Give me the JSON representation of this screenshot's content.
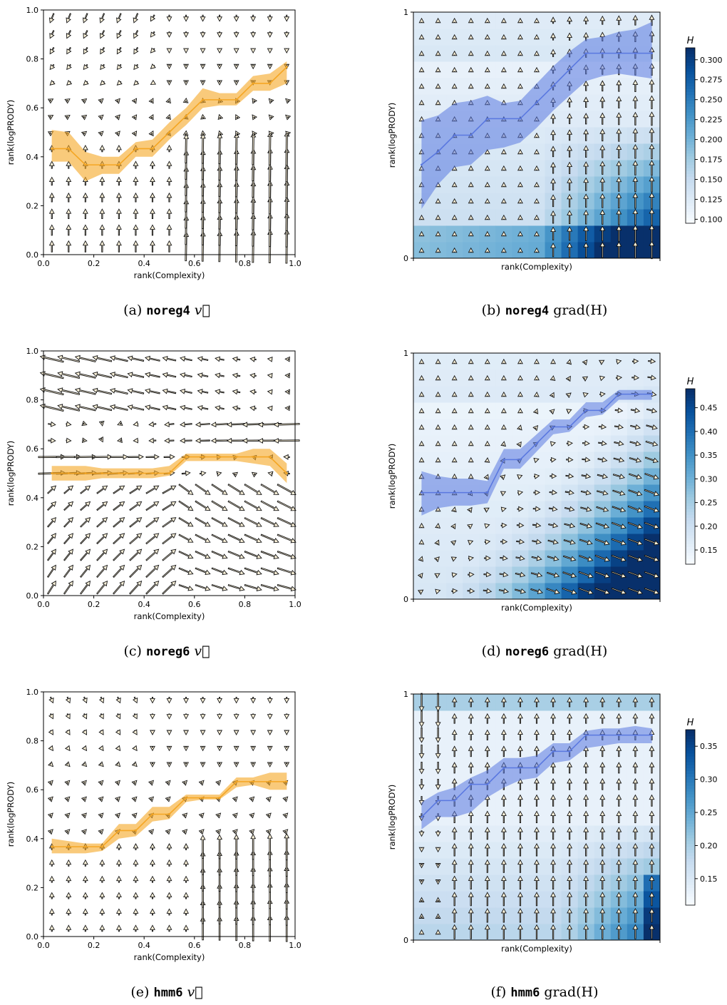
{
  "figure": {
    "panels": [
      {
        "id": "a",
        "kind": "vector",
        "caption": {
          "prefix": "(a)",
          "model": "noreg4",
          "suffix": "v⃗"
        },
        "xlabel": "rank(Complexity)",
        "ylabel": "rank(logPRODY)",
        "xticks": [
          "0.0",
          "0.2",
          "0.4",
          "0.6",
          "0.8",
          "1.0"
        ],
        "yticks": [
          "0.0",
          "0.2",
          "0.4",
          "0.6",
          "0.8",
          "1.0"
        ],
        "chart_data": {
          "type": "line",
          "xlim": [
            0,
            1
          ],
          "ylim": [
            0,
            1
          ],
          "series": [
            {
              "color": "#f5a623",
              "x": [
                0.033,
                0.1,
                0.167,
                0.233,
                0.3,
                0.367,
                0.433,
                0.5,
                0.567,
                0.633,
                0.7,
                0.767,
                0.833,
                0.9,
                0.967
              ],
              "y": [
                0.433,
                0.433,
                0.367,
                0.367,
                0.367,
                0.433,
                0.433,
                0.5,
                0.567,
                0.633,
                0.633,
                0.633,
                0.7,
                0.7,
                0.767
              ],
              "lower": [
                0.38,
                0.38,
                0.3,
                0.33,
                0.33,
                0.4,
                0.4,
                0.47,
                0.53,
                0.6,
                0.61,
                0.61,
                0.67,
                0.67,
                0.7
              ],
              "upper": [
                0.51,
                0.5,
                0.42,
                0.4,
                0.4,
                0.46,
                0.47,
                0.54,
                0.6,
                0.68,
                0.66,
                0.66,
                0.73,
                0.74,
                0.79
              ]
            }
          ],
          "field": "pattern-a",
          "grid": false
        }
      },
      {
        "id": "b",
        "kind": "heatmap",
        "caption": {
          "prefix": "(b)",
          "model": "noreg4",
          "suffix": "grad(H)"
        },
        "xlabel": "rank(Complexity)",
        "ylabel": "rank(logPRODY)",
        "yticks": [
          "0",
          "1"
        ],
        "colorbar": {
          "label": "H",
          "ticks": [
            "0.100",
            "0.125",
            "0.150",
            "0.175",
            "0.200",
            "0.225",
            "0.250",
            "0.275",
            "0.300"
          ],
          "min": 0.095,
          "max": 0.315
        },
        "chart_data": {
          "type": "heatmap",
          "xlim": [
            0,
            1
          ],
          "ylim": [
            0,
            1
          ],
          "series": [
            {
              "color": "#5a78e0",
              "x": [
                0.033,
                0.1,
                0.167,
                0.233,
                0.3,
                0.367,
                0.433,
                0.5,
                0.567,
                0.633,
                0.7,
                0.767,
                0.833,
                0.9,
                0.967
              ],
              "y": [
                0.38,
                0.433,
                0.5,
                0.5,
                0.567,
                0.567,
                0.567,
                0.633,
                0.7,
                0.767,
                0.833,
                0.833,
                0.833,
                0.833,
                0.833
              ],
              "lower": [
                0.2,
                0.3,
                0.37,
                0.38,
                0.44,
                0.45,
                0.47,
                0.53,
                0.6,
                0.66,
                0.72,
                0.74,
                0.75,
                0.74,
                0.73
              ],
              "upper": [
                0.56,
                0.58,
                0.63,
                0.64,
                0.66,
                0.63,
                0.64,
                0.71,
                0.78,
                0.84,
                0.89,
                0.9,
                0.92,
                0.93,
                0.96
              ]
            }
          ],
          "heat": "heat-b",
          "field": "grad-b"
        }
      },
      {
        "id": "c",
        "kind": "vector",
        "caption": {
          "prefix": "(c)",
          "model": "noreg6",
          "suffix": "v⃗"
        },
        "xlabel": "rank(Complexity)",
        "ylabel": "rank(logPRODY)",
        "xticks": [
          "0.0",
          "0.2",
          "0.4",
          "0.6",
          "0.8",
          "1.0"
        ],
        "yticks": [
          "0.0",
          "0.2",
          "0.4",
          "0.6",
          "0.8",
          "1.0"
        ],
        "chart_data": {
          "type": "line",
          "xlim": [
            0,
            1
          ],
          "ylim": [
            0,
            1
          ],
          "series": [
            {
              "color": "#f5a623",
              "x": [
                0.033,
                0.1,
                0.167,
                0.233,
                0.3,
                0.367,
                0.433,
                0.5,
                0.567,
                0.633,
                0.7,
                0.767,
                0.833,
                0.9,
                0.967
              ],
              "y": [
                0.5,
                0.5,
                0.5,
                0.5,
                0.5,
                0.5,
                0.5,
                0.5,
                0.567,
                0.567,
                0.567,
                0.567,
                0.567,
                0.567,
                0.5
              ],
              "lower": [
                0.47,
                0.47,
                0.47,
                0.48,
                0.48,
                0.48,
                0.48,
                0.49,
                0.55,
                0.55,
                0.55,
                0.55,
                0.54,
                0.53,
                0.46
              ],
              "upper": [
                0.53,
                0.53,
                0.53,
                0.52,
                0.52,
                0.52,
                0.52,
                0.53,
                0.58,
                0.58,
                0.58,
                0.58,
                0.6,
                0.6,
                0.54
              ]
            }
          ],
          "field": "pattern-c",
          "grid": false
        }
      },
      {
        "id": "d",
        "kind": "heatmap",
        "caption": {
          "prefix": "(d)",
          "model": "noreg6",
          "suffix": "grad(H)"
        },
        "xlabel": "rank(Complexity)",
        "ylabel": "rank(logPRODY)",
        "yticks": [
          "0",
          "1"
        ],
        "colorbar": {
          "label": "H",
          "ticks": [
            "0.15",
            "0.20",
            "0.25",
            "0.30",
            "0.35",
            "0.40",
            "0.45"
          ],
          "min": 0.12,
          "max": 0.49
        },
        "chart_data": {
          "type": "heatmap",
          "xlim": [
            0,
            1
          ],
          "ylim": [
            0,
            1
          ],
          "series": [
            {
              "color": "#5a78e0",
              "x": [
                0.033,
                0.1,
                0.167,
                0.233,
                0.3,
                0.367,
                0.433,
                0.5,
                0.567,
                0.633,
                0.7,
                0.767,
                0.833,
                0.9,
                0.967
              ],
              "y": [
                0.433,
                0.433,
                0.433,
                0.433,
                0.433,
                0.567,
                0.567,
                0.633,
                0.7,
                0.7,
                0.767,
                0.767,
                0.833,
                0.833,
                0.833
              ],
              "lower": [
                0.34,
                0.37,
                0.38,
                0.38,
                0.39,
                0.53,
                0.53,
                0.6,
                0.67,
                0.68,
                0.74,
                0.75,
                0.81,
                0.81,
                0.81
              ],
              "upper": [
                0.52,
                0.5,
                0.49,
                0.49,
                0.48,
                0.61,
                0.61,
                0.67,
                0.73,
                0.73,
                0.8,
                0.8,
                0.85,
                0.85,
                0.85
              ]
            }
          ],
          "heat": "heat-d",
          "field": "grad-d"
        }
      },
      {
        "id": "e",
        "kind": "vector",
        "caption": {
          "prefix": "(e)",
          "model": "hmm6",
          "suffix": "v⃗"
        },
        "xlabel": "rank(Complexity)",
        "ylabel": "rank(logPRODY)",
        "xticks": [
          "0.0",
          "0.2",
          "0.4",
          "0.6",
          "0.8",
          "1.0"
        ],
        "yticks": [
          "0.0",
          "0.2",
          "0.4",
          "0.6",
          "0.8",
          "1.0"
        ],
        "chart_data": {
          "type": "line",
          "xlim": [
            0,
            1
          ],
          "ylim": [
            0,
            1
          ],
          "series": [
            {
              "color": "#f5a623",
              "x": [
                0.033,
                0.1,
                0.167,
                0.233,
                0.3,
                0.367,
                0.433,
                0.5,
                0.567,
                0.633,
                0.7,
                0.767,
                0.833,
                0.9,
                0.967
              ],
              "y": [
                0.367,
                0.367,
                0.367,
                0.367,
                0.433,
                0.433,
                0.5,
                0.5,
                0.567,
                0.567,
                0.567,
                0.633,
                0.633,
                0.633,
                0.633
              ],
              "lower": [
                0.34,
                0.34,
                0.34,
                0.35,
                0.4,
                0.41,
                0.47,
                0.48,
                0.55,
                0.56,
                0.56,
                0.61,
                0.62,
                0.6,
                0.6
              ],
              "upper": [
                0.4,
                0.39,
                0.38,
                0.38,
                0.46,
                0.46,
                0.53,
                0.53,
                0.58,
                0.58,
                0.58,
                0.65,
                0.65,
                0.67,
                0.67
              ]
            }
          ],
          "field": "pattern-e",
          "grid": false
        }
      },
      {
        "id": "f",
        "kind": "heatmap",
        "caption": {
          "prefix": "(f)",
          "model": "hmm6",
          "suffix": "grad(H)"
        },
        "xlabel": "rank(Complexity)",
        "ylabel": "rank(logPRODY)",
        "yticks": [
          "0",
          "1"
        ],
        "colorbar": {
          "label": "H",
          "ticks": [
            "0.15",
            "0.20",
            "0.25",
            "0.30",
            "0.35"
          ],
          "min": 0.11,
          "max": 0.375
        },
        "chart_data": {
          "type": "heatmap",
          "xlim": [
            0,
            1
          ],
          "ylim": [
            0,
            1
          ],
          "series": [
            {
              "color": "#5a78e0",
              "x": [
                0.033,
                0.1,
                0.167,
                0.233,
                0.3,
                0.367,
                0.433,
                0.5,
                0.567,
                0.633,
                0.7,
                0.767,
                0.833,
                0.9,
                0.967
              ],
              "y": [
                0.5,
                0.567,
                0.567,
                0.633,
                0.633,
                0.7,
                0.7,
                0.7,
                0.767,
                0.767,
                0.833,
                0.833,
                0.833,
                0.833,
                0.833
              ],
              "lower": [
                0.45,
                0.5,
                0.5,
                0.52,
                0.58,
                0.62,
                0.65,
                0.66,
                0.72,
                0.73,
                0.78,
                0.79,
                0.8,
                0.8,
                0.8
              ],
              "upper": [
                0.56,
                0.6,
                0.62,
                0.66,
                0.69,
                0.74,
                0.74,
                0.75,
                0.8,
                0.8,
                0.85,
                0.86,
                0.86,
                0.87,
                0.86
              ]
            }
          ],
          "heat": "heat-f",
          "field": "grad-f"
        }
      }
    ]
  }
}
